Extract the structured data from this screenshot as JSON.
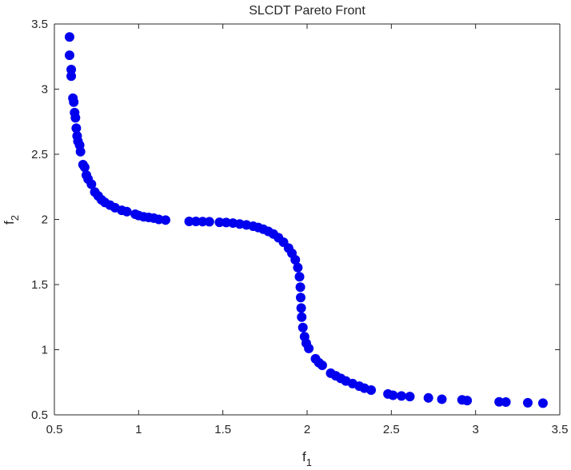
{
  "chart_data": {
    "type": "scatter",
    "title": "SLCDT Pareto Front",
    "xlabel": {
      "base": "f",
      "sub": "1"
    },
    "ylabel": {
      "base": "f",
      "sub": "2"
    },
    "xlim": [
      0.5,
      3.5
    ],
    "ylim": [
      0.5,
      3.5
    ],
    "xticks": [
      "0.5",
      "1",
      "1.5",
      "2",
      "2.5",
      "3",
      "3.5"
    ],
    "yticks": [
      "0.5",
      "1",
      "1.5",
      "2",
      "2.5",
      "3",
      "3.5"
    ],
    "grid": false,
    "legend": "none",
    "marker_color": "#0000EE",
    "series": [
      {
        "points": [
          [
            0.59,
            3.4
          ],
          [
            0.59,
            3.26
          ],
          [
            0.6,
            3.15
          ],
          [
            0.6,
            3.1
          ],
          [
            0.61,
            2.93
          ],
          [
            0.615,
            2.9
          ],
          [
            0.62,
            2.82
          ],
          [
            0.625,
            2.78
          ],
          [
            0.63,
            2.7
          ],
          [
            0.635,
            2.64
          ],
          [
            0.64,
            2.6
          ],
          [
            0.65,
            2.57
          ],
          [
            0.655,
            2.52
          ],
          [
            0.67,
            2.42
          ],
          [
            0.68,
            2.4
          ],
          [
            0.69,
            2.34
          ],
          [
            0.7,
            2.31
          ],
          [
            0.72,
            2.27
          ],
          [
            0.74,
            2.21
          ],
          [
            0.76,
            2.18
          ],
          [
            0.78,
            2.15
          ],
          [
            0.8,
            2.13
          ],
          [
            0.83,
            2.11
          ],
          [
            0.86,
            2.09
          ],
          [
            0.9,
            2.07
          ],
          [
            0.93,
            2.06
          ],
          [
            0.98,
            2.04
          ],
          [
            1.0,
            2.03
          ],
          [
            1.03,
            2.02
          ],
          [
            1.06,
            2.015
          ],
          [
            1.09,
            2.01
          ],
          [
            1.12,
            2.0
          ],
          [
            1.16,
            1.995
          ],
          [
            1.3,
            1.985
          ],
          [
            1.34,
            1.985
          ],
          [
            1.38,
            1.983
          ],
          [
            1.42,
            1.982
          ],
          [
            1.48,
            1.978
          ],
          [
            1.52,
            1.976
          ],
          [
            1.56,
            1.972
          ],
          [
            1.6,
            1.965
          ],
          [
            1.64,
            1.958
          ],
          [
            1.68,
            1.948
          ],
          [
            1.71,
            1.938
          ],
          [
            1.74,
            1.925
          ],
          [
            1.77,
            1.908
          ],
          [
            1.8,
            1.888
          ],
          [
            1.83,
            1.86
          ],
          [
            1.86,
            1.825
          ],
          [
            1.89,
            1.78
          ],
          [
            1.91,
            1.74
          ],
          [
            1.93,
            1.69
          ],
          [
            1.945,
            1.63
          ],
          [
            1.955,
            1.56
          ],
          [
            1.96,
            1.48
          ],
          [
            1.962,
            1.4
          ],
          [
            1.965,
            1.32
          ],
          [
            1.968,
            1.25
          ],
          [
            1.975,
            1.17
          ],
          [
            1.985,
            1.1
          ],
          [
            1.995,
            1.05
          ],
          [
            2.01,
            1.01
          ],
          [
            2.05,
            0.93
          ],
          [
            2.07,
            0.9
          ],
          [
            2.09,
            0.88
          ],
          [
            2.14,
            0.82
          ],
          [
            2.17,
            0.8
          ],
          [
            2.2,
            0.78
          ],
          [
            2.23,
            0.76
          ],
          [
            2.27,
            0.74
          ],
          [
            2.31,
            0.72
          ],
          [
            2.34,
            0.705
          ],
          [
            2.38,
            0.69
          ],
          [
            2.48,
            0.66
          ],
          [
            2.51,
            0.65
          ],
          [
            2.56,
            0.645
          ],
          [
            2.61,
            0.64
          ],
          [
            2.72,
            0.63
          ],
          [
            2.8,
            0.62
          ],
          [
            2.92,
            0.615
          ],
          [
            2.95,
            0.61
          ],
          [
            3.14,
            0.6
          ],
          [
            3.18,
            0.598
          ],
          [
            3.31,
            0.593
          ],
          [
            3.4,
            0.59
          ]
        ]
      }
    ]
  }
}
